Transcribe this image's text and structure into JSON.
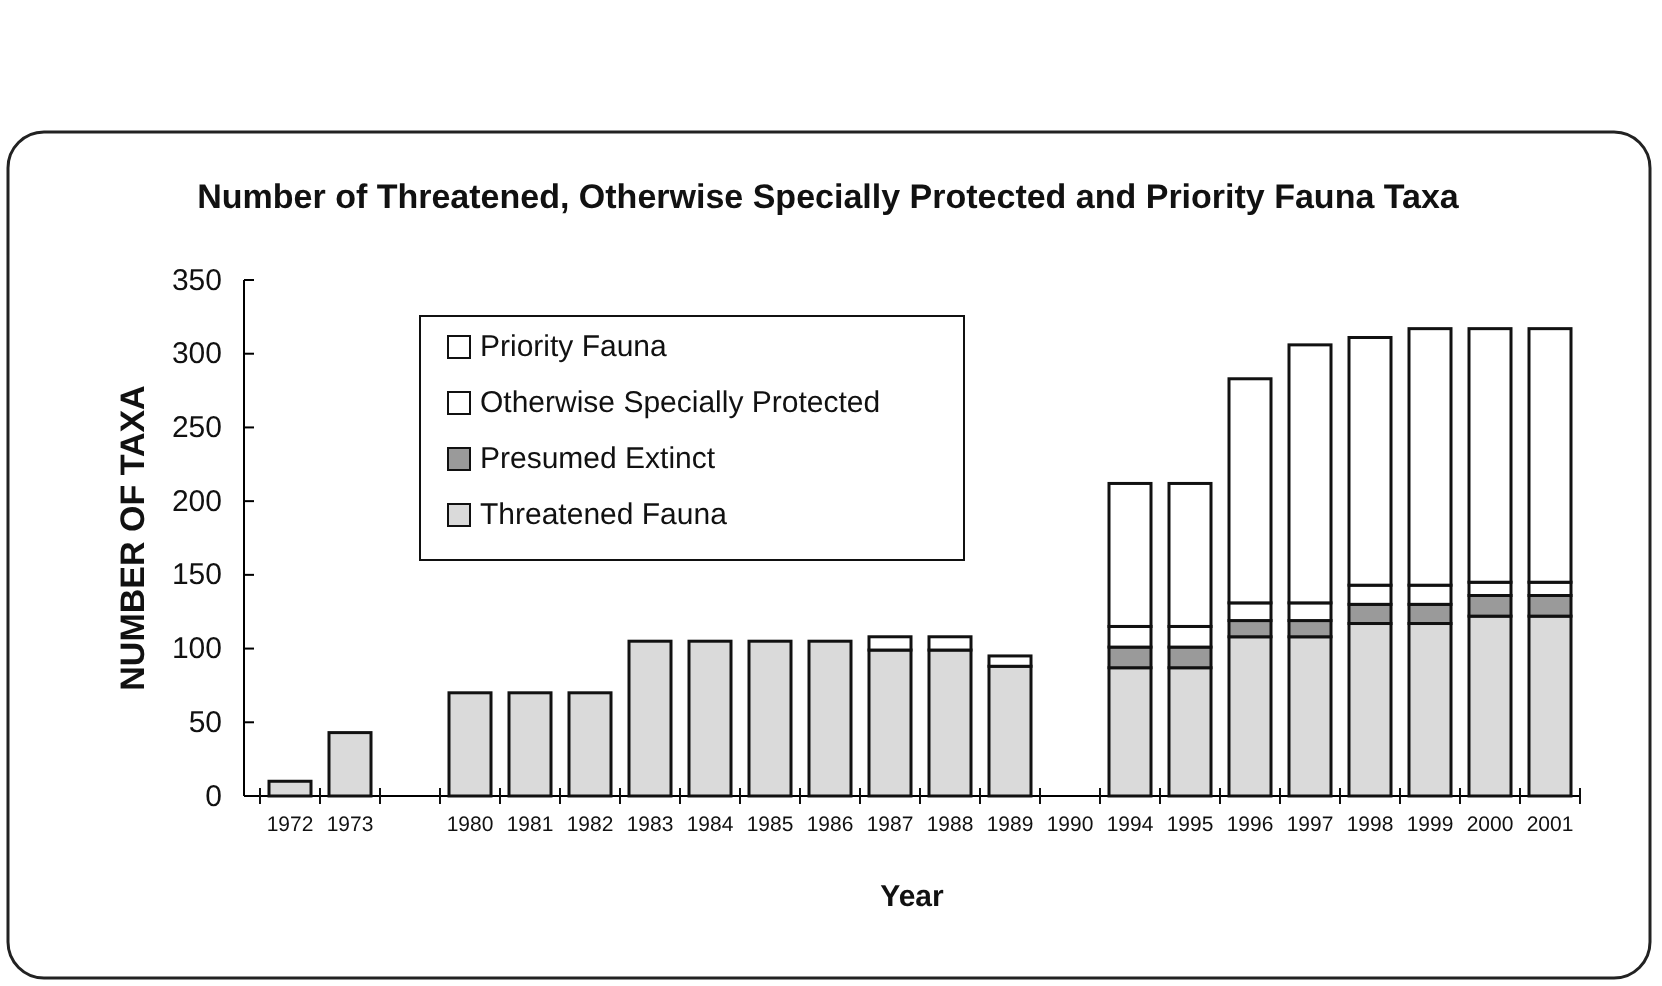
{
  "chart_data": {
    "type": "bar",
    "title": "Number of Threatened, Otherwise Specially Protected and Priority Fauna Taxa",
    "xlabel": "Year",
    "ylabel": "NUMBER OF TAXA",
    "categories": [
      "1972",
      "1973",
      null,
      "1980",
      "1981",
      "1982",
      "1983",
      "1984",
      "1985",
      "1986",
      "1987",
      "1988",
      "1989",
      "1990",
      "1994",
      "1995",
      "1996",
      "1997",
      "1998",
      "1999",
      "2000",
      "2001"
    ],
    "stacked": true,
    "ylim": [
      0,
      350
    ],
    "yticks": [
      0,
      50,
      100,
      150,
      200,
      250,
      300,
      350
    ],
    "grid": false,
    "legend": "top left",
    "series": [
      {
        "name": "Threatened Fauna",
        "color": "#dadada",
        "values": [
          10,
          43,
          null,
          70,
          70,
          70,
          105,
          105,
          105,
          105,
          99,
          99,
          88,
          null,
          87,
          87,
          108,
          108,
          117,
          117,
          122,
          122
        ]
      },
      {
        "name": "Presumed Extinct",
        "color": "#9a9a9a",
        "values": [
          null,
          null,
          null,
          null,
          null,
          null,
          null,
          null,
          null,
          null,
          null,
          null,
          null,
          null,
          14,
          14,
          11,
          11,
          13,
          13,
          14,
          14
        ]
      },
      {
        "name": "Otherwise Specially Protected",
        "color": "#ffffff",
        "values": [
          null,
          null,
          null,
          null,
          null,
          null,
          null,
          null,
          null,
          null,
          9,
          9,
          7,
          null,
          14,
          14,
          12,
          12,
          13,
          13,
          9,
          9
        ]
      },
      {
        "name": "Priority Fauna",
        "color": "#ffffff",
        "values": [
          null,
          null,
          null,
          null,
          null,
          null,
          null,
          null,
          null,
          null,
          null,
          null,
          null,
          null,
          97,
          97,
          152,
          175,
          168,
          174,
          172,
          172
        ]
      }
    ]
  }
}
